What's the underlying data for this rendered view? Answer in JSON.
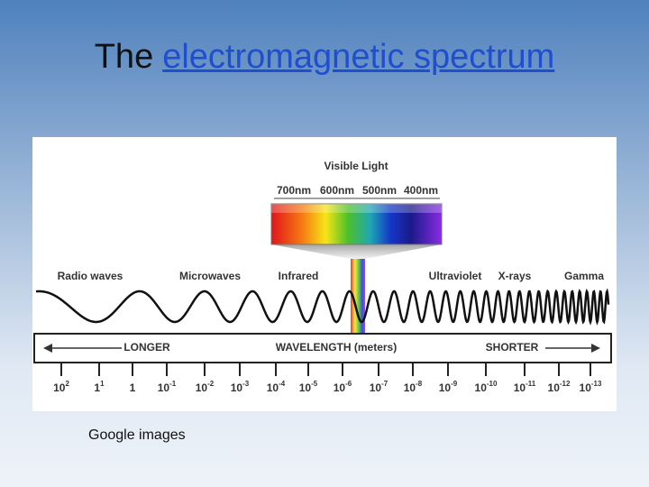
{
  "header": {
    "title_prefix": "The",
    "title_link": "electromagnetic spectrum"
  },
  "diagram": {
    "visible_light": "Visible Light",
    "nm_labels": [
      "700nm",
      "600nm",
      "500nm",
      "400nm"
    ],
    "wave_labels": [
      "Radio waves",
      "Microwaves",
      "Infrared",
      "Ultraviolet",
      "X-rays",
      "Gamma"
    ],
    "longer": "LONGER",
    "wavelength": "WAVELENGTH (meters)",
    "shorter": "SHORTER",
    "ticks": [
      {
        "base": "10",
        "exp": "2"
      },
      {
        "base": "1",
        "exp": "1"
      },
      {
        "base": "1",
        "exp": null
      },
      {
        "base": "10",
        "exp": "-1"
      },
      {
        "base": "10",
        "exp": "-2"
      },
      {
        "base": "10",
        "exp": "-3"
      },
      {
        "base": "10",
        "exp": "-4"
      },
      {
        "base": "10",
        "exp": "-5"
      },
      {
        "base": "10",
        "exp": "-6"
      },
      {
        "base": "10",
        "exp": "-7"
      },
      {
        "base": "10",
        "exp": "-8"
      },
      {
        "base": "10",
        "exp": "-9"
      },
      {
        "base": "10",
        "exp": "-10"
      },
      {
        "base": "10",
        "exp": "-11"
      },
      {
        "base": "10",
        "exp": "-12"
      },
      {
        "base": "10",
        "exp": "-13"
      }
    ]
  },
  "caption": "Google images"
}
